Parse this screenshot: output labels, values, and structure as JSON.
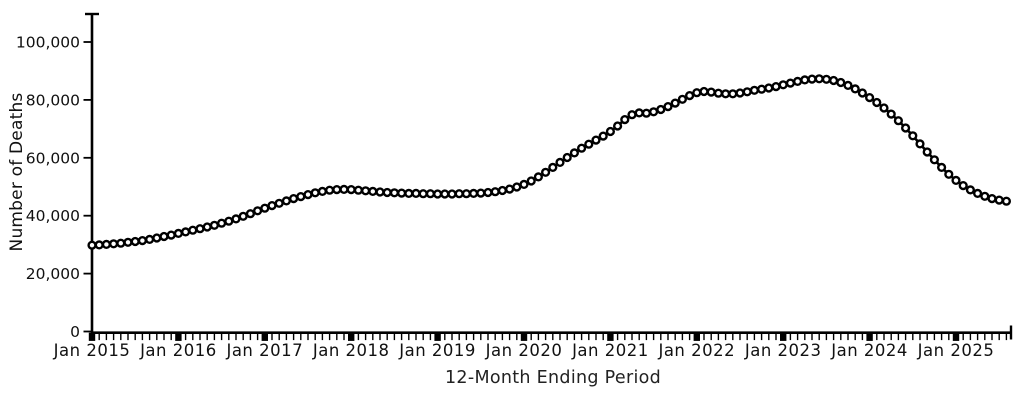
{
  "chart_data": {
    "type": "line",
    "title": "",
    "xlabel": "12-Month Ending Period",
    "ylabel": "Number of Deaths",
    "x_start": "2015-01",
    "x_interval": "monthly",
    "x_tick_labels": [
      "Jan 2015",
      "Jan 2016",
      "Jan 2017",
      "Jan 2018",
      "Jan 2019",
      "Jan 2020",
      "Jan 2021",
      "Jan 2022",
      "Jan 2023",
      "Jan 2024",
      "Jan 2025"
    ],
    "y_ticks": [
      0,
      20000,
      40000,
      60000,
      80000,
      100000
    ],
    "y_tick_labels": [
      "0",
      "20,000",
      "40,000",
      "60,000",
      "80,000",
      "100,000"
    ],
    "ylim": [
      0,
      110000
    ],
    "grid": false,
    "legend": "none",
    "line_color": "#000000",
    "marker": "open-circle",
    "marker_fill": "#ffffff",
    "background": "#ffffff",
    "series": [
      {
        "name": "Number of Deaths, 12-month ending period",
        "values": [
          29800,
          29900,
          30100,
          30300,
          30500,
          30800,
          31100,
          31400,
          31800,
          32300,
          32800,
          33300,
          33900,
          34400,
          35000,
          35500,
          36100,
          36700,
          37400,
          38100,
          38900,
          39800,
          40700,
          41700,
          42600,
          43500,
          44300,
          45100,
          45900,
          46600,
          47300,
          47900,
          48400,
          48800,
          49000,
          49100,
          49000,
          48800,
          48600,
          48400,
          48200,
          48000,
          47900,
          47800,
          47700,
          47700,
          47600,
          47600,
          47500,
          47500,
          47500,
          47600,
          47600,
          47700,
          47800,
          48000,
          48300,
          48700,
          49200,
          49900,
          50800,
          52000,
          53400,
          55000,
          56700,
          58400,
          60100,
          61700,
          63300,
          64700,
          66100,
          67500,
          69100,
          71000,
          73200,
          74900,
          75500,
          75400,
          75900,
          76700,
          77700,
          78900,
          80200,
          81500,
          82500,
          82900,
          82700,
          82300,
          82100,
          82100,
          82400,
          82800,
          83300,
          83700,
          84100,
          84600,
          85200,
          85800,
          86400,
          86900,
          87200,
          87300,
          87100,
          86700,
          86000,
          85000,
          83800,
          82400,
          80800,
          79100,
          77200,
          75100,
          72800,
          70300,
          67600,
          64800,
          62000,
          59300,
          56700,
          54300,
          52200,
          50400,
          48900,
          47700,
          46700,
          45900,
          45400,
          45000
        ]
      }
    ]
  }
}
